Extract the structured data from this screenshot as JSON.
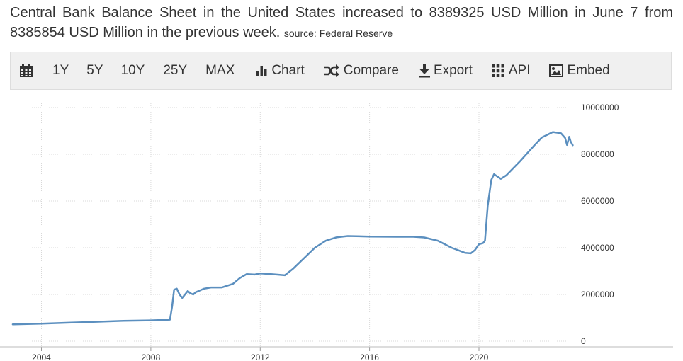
{
  "headline": {
    "text": "Central Bank Balance Sheet in the United States increased to 8389325 USD Million in June 7 from 8385854 USD Million in the previous week.",
    "source": "source: Federal Reserve"
  },
  "toolbar": {
    "items": [
      {
        "id": "calendar",
        "label": "",
        "icon": "calendar-icon"
      },
      {
        "id": "1y",
        "label": "1Y"
      },
      {
        "id": "5y",
        "label": "5Y"
      },
      {
        "id": "10y",
        "label": "10Y"
      },
      {
        "id": "25y",
        "label": "25Y"
      },
      {
        "id": "max",
        "label": "MAX"
      },
      {
        "id": "chart",
        "label": "Chart",
        "icon": "bar-chart-icon"
      },
      {
        "id": "compare",
        "label": "Compare",
        "icon": "shuffle-icon"
      },
      {
        "id": "export",
        "label": "Export",
        "icon": "download-icon"
      },
      {
        "id": "api",
        "label": "API",
        "icon": "grid-icon"
      },
      {
        "id": "embed",
        "label": "Embed",
        "icon": "picture-icon"
      }
    ]
  },
  "chart_data": {
    "type": "line",
    "title": "",
    "xlabel": "",
    "ylabel": "",
    "xlim": [
      2002.9,
      2023.6
    ],
    "ylim": [
      0,
      10000000
    ],
    "x_ticks": [
      2004,
      2008,
      2012,
      2016,
      2020
    ],
    "x_tick_labels": [
      "2004",
      "2008",
      "2012",
      "2016",
      "2020"
    ],
    "y_ticks": [
      0,
      2000000,
      4000000,
      6000000,
      8000000,
      10000000
    ],
    "y_tick_labels": [
      "0",
      "2000000",
      "4000000",
      "6000000",
      "8000000",
      "10000000"
    ],
    "grid": true,
    "line_color": "#5b8fbf",
    "series": [
      {
        "name": "",
        "x": [
          2002.95,
          2004,
          2005,
          2006,
          2007,
          2008,
          2008.7,
          2008.78,
          2008.85,
          2008.95,
          2009.05,
          2009.15,
          2009.25,
          2009.35,
          2009.45,
          2009.55,
          2009.65,
          2009.75,
          2009.85,
          2009.95,
          2010.2,
          2010.6,
          2011.0,
          2011.25,
          2011.5,
          2011.8,
          2012.0,
          2012.3,
          2012.6,
          2012.9,
          2013.2,
          2013.6,
          2014.0,
          2014.4,
          2014.8,
          2015.2,
          2016.0,
          2017.0,
          2017.6,
          2018.0,
          2018.5,
          2019.0,
          2019.5,
          2019.7,
          2019.85,
          2020.0,
          2020.15,
          2020.22,
          2020.32,
          2020.45,
          2020.55,
          2020.8,
          2021.0,
          2021.5,
          2022.0,
          2022.3,
          2022.7,
          2023.0,
          2023.15,
          2023.22,
          2023.3,
          2023.35,
          2023.43
        ],
        "y": [
          720000,
          750000,
          790000,
          830000,
          870000,
          890000,
          920000,
          1500000,
          2200000,
          2250000,
          2000000,
          1850000,
          2000000,
          2150000,
          2050000,
          2000000,
          2100000,
          2150000,
          2200000,
          2250000,
          2300000,
          2300000,
          2450000,
          2700000,
          2870000,
          2850000,
          2900000,
          2880000,
          2850000,
          2820000,
          3100000,
          3550000,
          4000000,
          4300000,
          4450000,
          4500000,
          4480000,
          4470000,
          4470000,
          4440000,
          4300000,
          4000000,
          3780000,
          3760000,
          3900000,
          4150000,
          4200000,
          4300000,
          5800000,
          6900000,
          7150000,
          6950000,
          7100000,
          7700000,
          8350000,
          8720000,
          8950000,
          8900000,
          8700000,
          8400000,
          8750000,
          8550000,
          8389325
        ]
      }
    ]
  }
}
